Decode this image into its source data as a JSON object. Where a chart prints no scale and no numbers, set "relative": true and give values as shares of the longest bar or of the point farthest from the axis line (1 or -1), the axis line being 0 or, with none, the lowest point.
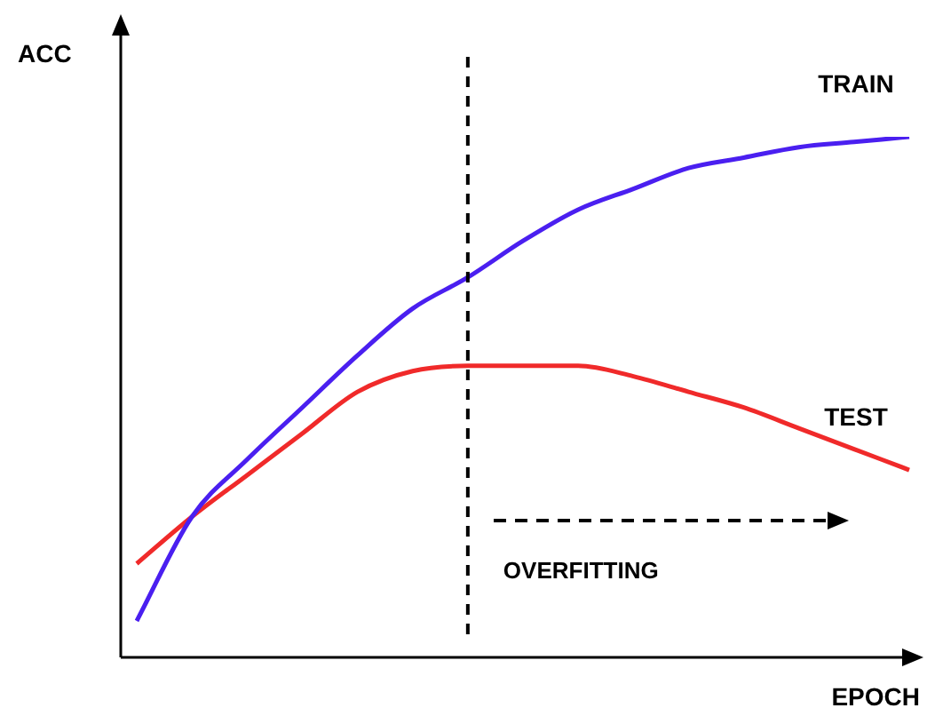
{
  "chart_data": {
    "type": "line",
    "relative": true,
    "xlabel": "EPOCH",
    "ylabel": "ACC",
    "categories": [
      null,
      null,
      null,
      null,
      null,
      null,
      null,
      null,
      null,
      null,
      null,
      null,
      null,
      null,
      null
    ],
    "series": [
      {
        "name": "TRAIN",
        "color": "#4a1ff0",
        "values": [
          0.07,
          0.27,
          0.38,
          0.48,
          0.58,
          0.67,
          0.73,
          0.8,
          0.86,
          0.9,
          0.94,
          0.96,
          0.98,
          0.99,
          1
        ]
      },
      {
        "name": "TEST",
        "color": "#f02a2a",
        "values": [
          0.18,
          0.27,
          0.35,
          0.43,
          0.51,
          0.55,
          0.56,
          0.56,
          0.56,
          0.54,
          0.51,
          0.48,
          0.44,
          0.4,
          0.36
        ]
      }
    ],
    "annotations": [
      "OVERFITTING"
    ],
    "grid": false,
    "legend": false,
    "marker": "none",
    "line_style": "solid"
  }
}
